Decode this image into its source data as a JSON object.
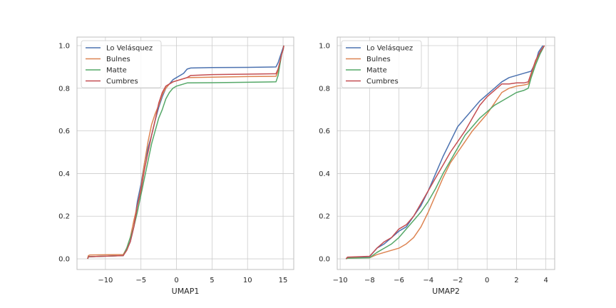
{
  "colors": {
    "grid": "#cccccc",
    "spine": "#bfbfbf",
    "text": "#262626",
    "legend_border": "#cccccc"
  },
  "chart_data": [
    {
      "type": "line",
      "title": "",
      "xlabel": "UMAP1",
      "ylabel": "",
      "xlim": [
        -14,
        16.5
      ],
      "ylim": [
        -0.05,
        1.04
      ],
      "xticks": [
        -10,
        -5,
        0,
        5,
        10,
        15
      ],
      "xtick_labels": [
        "−10",
        "−5",
        "0",
        "5",
        "10",
        "15"
      ],
      "yticks": [
        0.0,
        0.2,
        0.4,
        0.6,
        0.8,
        1.0
      ],
      "ytick_labels": [
        "0.0",
        "0.2",
        "0.4",
        "0.6",
        "0.8",
        "1.0"
      ],
      "grid": true,
      "legend_position": "top-left",
      "series": [
        {
          "name": "Lo Velásquez",
          "color": "#4c72b0",
          "x": [
            -12.5,
            -12.4,
            -12.2,
            -7.5,
            -7.0,
            -6.5,
            -6.0,
            -5.8,
            -5.5,
            -5.0,
            -4.5,
            -4.0,
            -3.5,
            -3.0,
            -2.5,
            -2.0,
            -1.5,
            -1.0,
            -0.5,
            0.0,
            0.5,
            1.0,
            1.5,
            2.0,
            5.0,
            10.0,
            14.0,
            14.3,
            14.6,
            14.8,
            15.0,
            15.1
          ],
          "y": [
            0.0,
            0.01,
            0.01,
            0.015,
            0.05,
            0.08,
            0.15,
            0.2,
            0.27,
            0.35,
            0.45,
            0.52,
            0.58,
            0.65,
            0.71,
            0.76,
            0.8,
            0.82,
            0.84,
            0.85,
            0.86,
            0.87,
            0.89,
            0.895,
            0.897,
            0.898,
            0.9,
            0.92,
            0.95,
            0.97,
            0.99,
            1.0
          ]
        },
        {
          "name": "Bulnes",
          "color": "#dd8452",
          "x": [
            -12.5,
            -12.4,
            -12.2,
            -7.5,
            -7.0,
            -6.5,
            -6.0,
            -5.5,
            -5.0,
            -4.5,
            -4.0,
            -3.5,
            -3.0,
            -2.5,
            -2.0,
            -1.5,
            -1.0,
            -0.5,
            0.0,
            0.5,
            1.0,
            1.5,
            5.0,
            10.0,
            14.0,
            14.3,
            14.6,
            14.8,
            15.0,
            15.1
          ],
          "y": [
            0.0,
            0.015,
            0.018,
            0.02,
            0.05,
            0.1,
            0.18,
            0.25,
            0.33,
            0.45,
            0.55,
            0.63,
            0.68,
            0.72,
            0.77,
            0.8,
            0.82,
            0.83,
            0.835,
            0.84,
            0.845,
            0.85,
            0.852,
            0.855,
            0.856,
            0.88,
            0.93,
            0.96,
            0.98,
            1.0
          ]
        },
        {
          "name": "Matte",
          "color": "#55a868",
          "x": [
            -12.5,
            -12.4,
            -12.2,
            -7.5,
            -7.0,
            -6.5,
            -6.0,
            -5.5,
            -5.0,
            -4.5,
            -4.0,
            -3.5,
            -3.0,
            -2.5,
            -2.0,
            -1.5,
            -1.0,
            -0.5,
            0.0,
            0.5,
            1.0,
            1.5,
            5.0,
            10.0,
            14.0,
            14.3,
            14.6,
            14.8,
            15.0,
            15.1
          ],
          "y": [
            0.0,
            0.01,
            0.01,
            0.015,
            0.05,
            0.1,
            0.15,
            0.22,
            0.3,
            0.38,
            0.46,
            0.54,
            0.6,
            0.66,
            0.7,
            0.75,
            0.78,
            0.8,
            0.81,
            0.815,
            0.82,
            0.825,
            0.826,
            0.828,
            0.83,
            0.86,
            0.92,
            0.96,
            0.98,
            1.0
          ]
        },
        {
          "name": "Cumbres",
          "color": "#c44e52",
          "x": [
            -12.5,
            -12.4,
            -12.2,
            -7.5,
            -7.0,
            -6.5,
            -6.0,
            -5.5,
            -5.0,
            -4.5,
            -4.0,
            -3.5,
            -3.0,
            -2.5,
            -2.0,
            -1.5,
            -1.0,
            -0.5,
            0.0,
            0.5,
            1.0,
            1.5,
            2.0,
            5.0,
            10.0,
            14.0,
            14.3,
            14.6,
            14.8,
            15.0,
            15.1
          ],
          "y": [
            0.0,
            0.01,
            0.01,
            0.015,
            0.04,
            0.08,
            0.15,
            0.25,
            0.32,
            0.42,
            0.5,
            0.58,
            0.65,
            0.73,
            0.78,
            0.81,
            0.82,
            0.83,
            0.835,
            0.84,
            0.845,
            0.85,
            0.86,
            0.864,
            0.866,
            0.868,
            0.89,
            0.93,
            0.96,
            0.98,
            1.0
          ]
        }
      ]
    },
    {
      "type": "line",
      "title": "",
      "xlabel": "UMAP2",
      "ylabel": "",
      "xlim": [
        -10.2,
        4.6
      ],
      "ylim": [
        -0.05,
        1.04
      ],
      "xticks": [
        -10,
        -8,
        -6,
        -4,
        -2,
        0,
        2,
        4
      ],
      "xtick_labels": [
        "−10",
        "−8",
        "−6",
        "−4",
        "−2",
        "0",
        "2",
        "4"
      ],
      "yticks": [
        0.0,
        0.2,
        0.4,
        0.6,
        0.8,
        1.0
      ],
      "ytick_labels": [
        "0.0",
        "0.2",
        "0.4",
        "0.6",
        "0.8",
        "1.0"
      ],
      "grid": true,
      "legend_position": "top-left",
      "series": [
        {
          "name": "Lo Velásquez",
          "color": "#4c72b0",
          "x": [
            -9.6,
            -9.5,
            -8.0,
            -7.5,
            -7.0,
            -6.5,
            -6.0,
            -5.5,
            -5.0,
            -4.5,
            -4.0,
            -3.5,
            -3.0,
            -2.5,
            -2.0,
            -1.5,
            -1.0,
            -0.5,
            0.0,
            0.5,
            1.0,
            1.5,
            2.0,
            2.5,
            3.0,
            3.3,
            3.5,
            3.8
          ],
          "y": [
            0.0,
            0.005,
            0.01,
            0.05,
            0.07,
            0.1,
            0.13,
            0.15,
            0.2,
            0.25,
            0.32,
            0.4,
            0.48,
            0.55,
            0.62,
            0.66,
            0.7,
            0.74,
            0.77,
            0.8,
            0.83,
            0.85,
            0.86,
            0.87,
            0.88,
            0.92,
            0.97,
            1.0
          ]
        },
        {
          "name": "Bulnes",
          "color": "#dd8452",
          "x": [
            -9.6,
            -9.5,
            -8.0,
            -7.5,
            -7.0,
            -6.5,
            -6.0,
            -5.5,
            -5.0,
            -4.5,
            -4.0,
            -3.5,
            -3.0,
            -2.5,
            -2.0,
            -1.5,
            -1.0,
            -0.5,
            0.0,
            0.5,
            1.0,
            1.5,
            2.0,
            2.5,
            2.8,
            3.0,
            3.3,
            3.6,
            3.9
          ],
          "y": [
            0.0,
            0.003,
            0.005,
            0.02,
            0.03,
            0.04,
            0.05,
            0.07,
            0.1,
            0.15,
            0.22,
            0.3,
            0.38,
            0.45,
            0.5,
            0.55,
            0.6,
            0.64,
            0.68,
            0.73,
            0.78,
            0.8,
            0.81,
            0.815,
            0.82,
            0.86,
            0.92,
            0.97,
            1.0
          ]
        },
        {
          "name": "Matte",
          "color": "#55a868",
          "x": [
            -9.6,
            -9.5,
            -8.0,
            -7.5,
            -7.0,
            -6.5,
            -6.0,
            -5.5,
            -5.0,
            -4.5,
            -4.0,
            -3.5,
            -3.0,
            -2.5,
            -2.0,
            -1.5,
            -1.0,
            -0.5,
            0.0,
            0.5,
            1.0,
            1.5,
            2.0,
            2.5,
            2.8,
            3.0,
            3.3,
            3.6,
            3.9
          ],
          "y": [
            0.0,
            0.003,
            0.005,
            0.03,
            0.05,
            0.07,
            0.1,
            0.14,
            0.18,
            0.22,
            0.27,
            0.33,
            0.4,
            0.46,
            0.52,
            0.58,
            0.62,
            0.66,
            0.69,
            0.72,
            0.74,
            0.76,
            0.78,
            0.79,
            0.8,
            0.85,
            0.91,
            0.96,
            1.0
          ]
        },
        {
          "name": "Cumbres",
          "color": "#c44e52",
          "x": [
            -9.6,
            -9.5,
            -8.0,
            -7.5,
            -7.0,
            -6.5,
            -6.0,
            -5.5,
            -5.0,
            -4.5,
            -4.0,
            -3.5,
            -3.0,
            -2.5,
            -2.0,
            -1.5,
            -1.0,
            -0.5,
            0.0,
            0.5,
            1.0,
            1.5,
            2.0,
            2.5,
            2.8,
            3.0,
            3.3,
            3.6,
            3.9
          ],
          "y": [
            0.0,
            0.008,
            0.012,
            0.05,
            0.08,
            0.1,
            0.14,
            0.16,
            0.2,
            0.26,
            0.32,
            0.38,
            0.44,
            0.5,
            0.55,
            0.6,
            0.66,
            0.72,
            0.76,
            0.79,
            0.82,
            0.82,
            0.825,
            0.825,
            0.83,
            0.87,
            0.93,
            0.97,
            1.0
          ]
        }
      ]
    }
  ]
}
